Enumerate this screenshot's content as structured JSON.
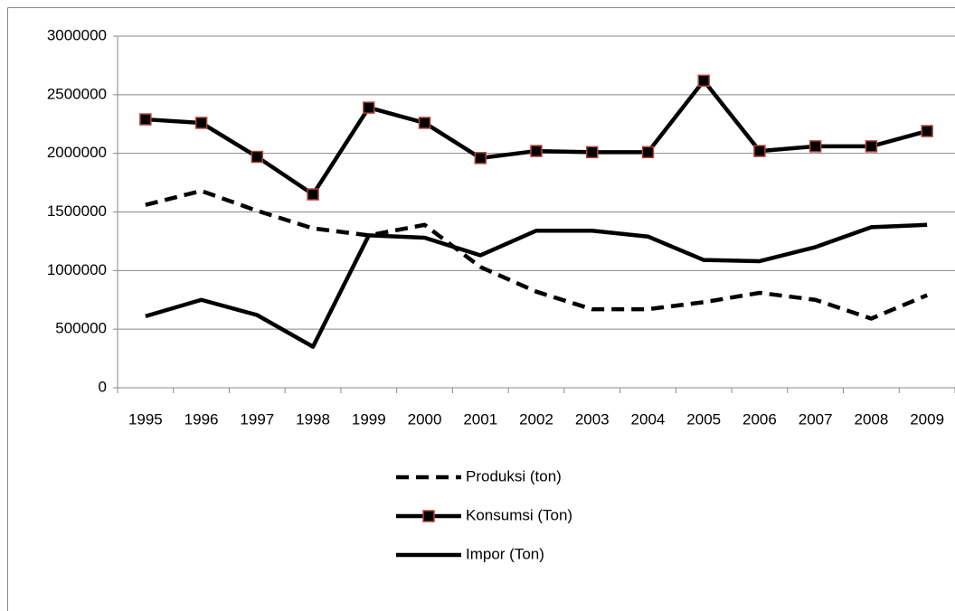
{
  "chart_data": {
    "type": "line",
    "categories": [
      "1995",
      "1996",
      "1997",
      "1998",
      "1999",
      "2000",
      "2001",
      "2002",
      "2003",
      "2004",
      "2005",
      "2006",
      "2007",
      "2008",
      "2009"
    ],
    "series": [
      {
        "name": "Produksi (ton)",
        "color": "#000000",
        "line_style": "dashed",
        "values": [
          1560000,
          1680000,
          1510000,
          1360000,
          1300000,
          1390000,
          1030000,
          820000,
          670000,
          670000,
          730000,
          810000,
          750000,
          590000,
          790000
        ]
      },
      {
        "name": "Konsumsi (Ton)",
        "color": "#000000",
        "line_style": "solid",
        "marker": "square",
        "marker_edge_color": "#b0453f",
        "values": [
          2290000,
          2260000,
          1970000,
          1650000,
          2390000,
          2260000,
          1960000,
          2020000,
          2010000,
          2010000,
          2620000,
          2020000,
          2060000,
          2060000,
          2190000
        ]
      },
      {
        "name": "Impor (Ton)",
        "color": "#000000",
        "line_style": "solid",
        "values": [
          610000,
          750000,
          620000,
          350000,
          1300000,
          1280000,
          1130000,
          1340000,
          1340000,
          1290000,
          1090000,
          1080000,
          1200000,
          1370000,
          1390000
        ]
      }
    ],
    "ylim": [
      0,
      3000000
    ],
    "yticks": [
      0,
      500000,
      1000000,
      1500000,
      2000000,
      2500000,
      3000000
    ],
    "grid": true,
    "legend": "bottom"
  }
}
